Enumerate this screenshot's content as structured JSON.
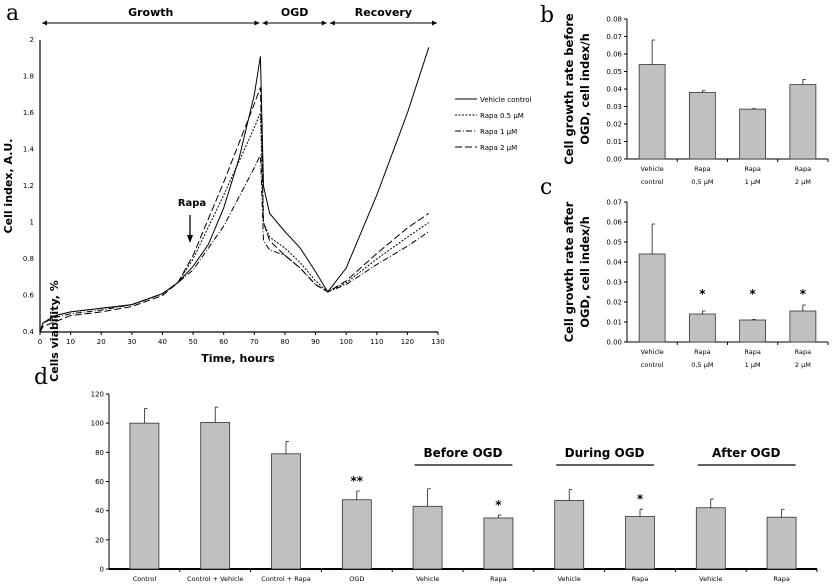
{
  "chart_data": [
    {
      "panel": "a",
      "type": "line",
      "xlabel": "Time, hours",
      "ylabel": "Cell index, A.U.",
      "xlim": [
        0,
        130
      ],
      "ylim": [
        0.4,
        2
      ],
      "xticks": [
        "0",
        "10",
        "20",
        "30",
        "40",
        "50",
        "60",
        "70",
        "80",
        "90",
        "100",
        "110",
        "120",
        "130"
      ],
      "yticks": [
        "0.4",
        "0.6",
        "0.8",
        "1",
        "1.2",
        "1.4",
        "1.6",
        "1.8",
        "2"
      ],
      "phases": [
        {
          "label": "Growth",
          "from": 0,
          "to": 72
        },
        {
          "label": "OGD",
          "from": 72,
          "to": 94
        },
        {
          "label": "Recovery",
          "from": 94,
          "to": 130
        }
      ],
      "annotation": {
        "label": "Rapa",
        "x": 49
      },
      "legend_position": "right",
      "series": [
        {
          "name": "Vehicle control",
          "dash": "solid",
          "points": [
            [
              0,
              0.4
            ],
            [
              1,
              0.45
            ],
            [
              5,
              0.49
            ],
            [
              10,
              0.51
            ],
            [
              20,
              0.53
            ],
            [
              30,
              0.55
            ],
            [
              40,
              0.61
            ],
            [
              45,
              0.67
            ],
            [
              50,
              0.76
            ],
            [
              55,
              0.88
            ],
            [
              60,
              1.08
            ],
            [
              65,
              1.35
            ],
            [
              70,
              1.7
            ],
            [
              72,
              1.91
            ],
            [
              73,
              1.2
            ],
            [
              75,
              1.05
            ],
            [
              80,
              0.95
            ],
            [
              85,
              0.86
            ],
            [
              90,
              0.73
            ],
            [
              94,
              0.62
            ],
            [
              100,
              0.75
            ],
            [
              110,
              1.15
            ],
            [
              120,
              1.6
            ],
            [
              127,
              1.96
            ]
          ]
        },
        {
          "name": "Rapa 0.5 µM",
          "dash": "dotted",
          "points": [
            [
              0,
              0.4
            ],
            [
              1,
              0.45
            ],
            [
              5,
              0.49
            ],
            [
              10,
              0.51
            ],
            [
              20,
              0.53
            ],
            [
              30,
              0.55
            ],
            [
              40,
              0.61
            ],
            [
              45,
              0.67
            ],
            [
              50,
              0.8
            ],
            [
              60,
              1.15
            ],
            [
              70,
              1.52
            ],
            [
              72,
              1.6
            ],
            [
              73,
              1.0
            ],
            [
              75,
              0.92
            ],
            [
              80,
              0.86
            ],
            [
              85,
              0.78
            ],
            [
              90,
              0.68
            ],
            [
              94,
              0.62
            ],
            [
              100,
              0.67
            ],
            [
              110,
              0.8
            ],
            [
              120,
              0.92
            ],
            [
              127,
              1.0
            ]
          ]
        },
        {
          "name": "Rapa 1 µM",
          "dash": "dashdot",
          "points": [
            [
              0,
              0.4
            ],
            [
              1,
              0.45
            ],
            [
              5,
              0.48
            ],
            [
              10,
              0.5
            ],
            [
              20,
              0.52
            ],
            [
              30,
              0.55
            ],
            [
              40,
              0.61
            ],
            [
              45,
              0.67
            ],
            [
              50,
              0.74
            ],
            [
              60,
              0.98
            ],
            [
              70,
              1.3
            ],
            [
              72,
              1.37
            ],
            [
              73,
              0.9
            ],
            [
              75,
              0.85
            ],
            [
              80,
              0.82
            ],
            [
              85,
              0.75
            ],
            [
              90,
              0.66
            ],
            [
              94,
              0.62
            ],
            [
              100,
              0.66
            ],
            [
              110,
              0.77
            ],
            [
              120,
              0.87
            ],
            [
              127,
              0.95
            ]
          ]
        },
        {
          "name": "Rapa 2 µM",
          "dash": "dashed",
          "points": [
            [
              0,
              0.4
            ],
            [
              1,
              0.43
            ],
            [
              10,
              0.49
            ],
            [
              20,
              0.51
            ],
            [
              30,
              0.54
            ],
            [
              40,
              0.6
            ],
            [
              45,
              0.67
            ],
            [
              50,
              0.82
            ],
            [
              60,
              1.22
            ],
            [
              70,
              1.65
            ],
            [
              72,
              1.74
            ],
            [
              73,
              1.0
            ],
            [
              75,
              0.9
            ],
            [
              80,
              0.82
            ],
            [
              85,
              0.75
            ],
            [
              90,
              0.66
            ],
            [
              94,
              0.62
            ],
            [
              100,
              0.68
            ],
            [
              110,
              0.83
            ],
            [
              120,
              0.97
            ],
            [
              127,
              1.05
            ]
          ]
        }
      ]
    },
    {
      "panel": "b",
      "type": "bar",
      "ylabel": "Cell growth rate before OGD, cell index/h",
      "ylim": [
        0,
        0.08
      ],
      "yticks": [
        "0.00",
        "0.01",
        "0.02",
        "0.03",
        "0.04",
        "0.05",
        "0.06",
        "0.07",
        "0.08"
      ],
      "categories": [
        [
          "Vehicle",
          "control"
        ],
        [
          "Rapa",
          "0,5 µM"
        ],
        [
          "Rapa",
          "1 µM"
        ],
        [
          "Rapa",
          "2 µM"
        ]
      ],
      "values": [
        0.054,
        0.038,
        0.0285,
        0.0425
      ],
      "errors": [
        0.014,
        0.001,
        0.0003,
        0.003
      ],
      "marks": [
        "",
        "",
        "",
        ""
      ]
    },
    {
      "panel": "c",
      "type": "bar",
      "ylabel": "Cell growth rate after OGD, cell index/h",
      "ylim": [
        0,
        0.07
      ],
      "yticks": [
        "0.00",
        "0.01",
        "0.02",
        "0.03",
        "0.04",
        "0.05",
        "0.06",
        "0.07"
      ],
      "categories": [
        [
          "Vehicle",
          "control"
        ],
        [
          "Rapa",
          "0,5 µM"
        ],
        [
          "Rapa",
          "1 µM"
        ],
        [
          "Rapa",
          "2 µM"
        ]
      ],
      "values": [
        0.044,
        0.014,
        0.011,
        0.0155
      ],
      "errors": [
        0.015,
        0.0015,
        0.0003,
        0.003
      ],
      "marks": [
        "",
        "*",
        "*",
        "*"
      ]
    },
    {
      "panel": "d",
      "type": "bar",
      "ylabel": "Cells viability, %",
      "ylim": [
        0,
        120
      ],
      "yticks": [
        "0",
        "20",
        "40",
        "60",
        "80",
        "100",
        "120"
      ],
      "categories": [
        "Control",
        "Control + Vehicle",
        "Control + Rapa",
        "OGD",
        "Vehicle",
        "Rapa",
        "Vehicle",
        "Rapa",
        "Vehicle",
        "Rapa"
      ],
      "values": [
        100,
        100.5,
        79,
        47.5,
        43,
        35,
        47,
        36,
        42,
        35.5
      ],
      "errors": [
        10,
        10.5,
        8.5,
        6,
        12,
        2,
        7.5,
        5,
        6,
        5.5
      ],
      "marks": [
        "",
        "",
        "",
        "**",
        "",
        "*",
        "",
        "*",
        "",
        ""
      ],
      "groups": [
        {
          "label": "Before OGD",
          "bars": [
            4,
            5
          ]
        },
        {
          "label": "During OGD",
          "bars": [
            6,
            7
          ]
        },
        {
          "label": "After OGD",
          "bars": [
            8,
            9
          ]
        }
      ]
    }
  ],
  "bar_color": "#c0c0c0"
}
